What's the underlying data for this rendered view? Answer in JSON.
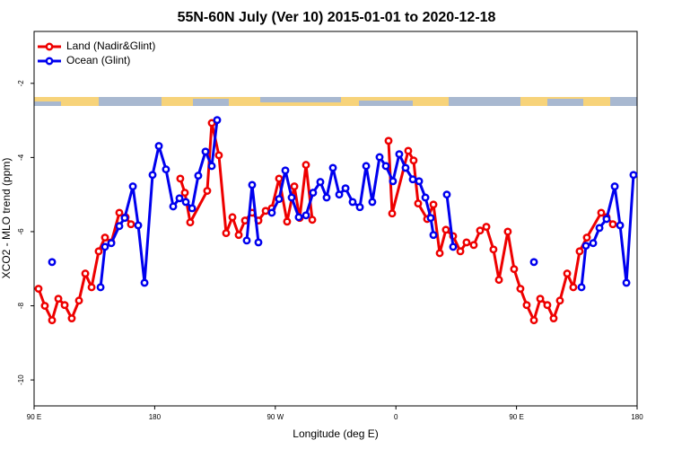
{
  "chart_data": {
    "type": "line",
    "title": "55N-60N July (Ver 10)   2015-01-01 to 2020-12-18",
    "x_label": "Longitude (deg E)",
    "y_label": "XCO2 - MLO trend (ppm)",
    "xlim": [
      90,
      540
    ],
    "xticks": [
      {
        "value": 90,
        "label": "90 E"
      },
      {
        "value": 180,
        "label": "180"
      },
      {
        "value": 270,
        "label": "90 W"
      },
      {
        "value": 360,
        "label": "0"
      },
      {
        "value": 450,
        "label": "90 E"
      },
      {
        "value": 540,
        "label": "180"
      }
    ],
    "ylim": [
      -10.7,
      -0.6
    ],
    "yticks": [
      -2,
      -4,
      -6,
      -8,
      -10
    ],
    "legend": "top-left",
    "series": [
      {
        "name": "Land (Nadir&Glint)",
        "color": "#ee0000",
        "x": [
          93.3,
          98.0,
          103.4,
          108.1,
          112.8,
          118.1,
          123.5,
          128.2,
          132.9,
          138.2,
          142.9,
          147.6,
          153.6,
          158.3,
          162.3,
          null,
          199.1,
          202.5,
          206.5,
          219.2,
          222.6,
          227.9,
          233.3,
          238.0,
          242.7,
          247.4,
          252.7,
          257.4,
          262.8,
          267.4,
          272.8,
          278.8,
          284.2,
          288.2,
          292.9,
          297.6,
          null,
          354.5,
          357.2,
          369.2,
          373.2,
          376.6,
          383.3,
          388.0,
          392.7,
          397.3,
          402.7,
          408.1,
          412.7,
          418.1,
          422.8,
          427.5,
          432.8,
          436.9,
          443.5,
          448.2,
          452.9,
          457.6,
          463.0,
          467.7,
          473.0,
          477.7,
          482.4,
          487.8,
          492.4,
          497.1,
          502.5,
          513.2,
          517.2,
          521.9
        ],
        "values": [
          -7.54,
          -8.0,
          -8.39,
          -7.81,
          -7.98,
          -8.34,
          -7.86,
          -7.13,
          -7.5,
          -6.53,
          -6.16,
          -6.29,
          -5.49,
          -5.61,
          -5.8,
          null,
          -4.57,
          -4.95,
          -5.75,
          -4.9,
          -3.07,
          -3.94,
          -6.04,
          -5.61,
          -6.09,
          -5.7,
          -5.49,
          -5.7,
          -5.44,
          -5.37,
          -4.57,
          -5.73,
          -4.78,
          -5.63,
          -4.2,
          -5.68,
          null,
          -3.55,
          -5.51,
          -3.82,
          -4.08,
          -5.24,
          -5.66,
          -5.27,
          -6.58,
          -5.95,
          -6.12,
          -6.53,
          -6.29,
          -6.36,
          -5.97,
          -5.87,
          -6.48,
          -7.3,
          -6.0,
          -7.01,
          -7.54,
          -7.98,
          -8.39,
          -7.81,
          -7.98,
          -8.34,
          -7.86,
          -7.13,
          -7.5,
          -6.53,
          -6.16,
          -5.49,
          -5.61,
          -5.8
        ]
      },
      {
        "name": "Ocean (Glint)",
        "color": "#0000ee",
        "x": [
          103.4,
          null,
          139.6,
          142.9,
          147.6,
          153.6,
          157.6,
          163.7,
          167.7,
          172.4,
          178.4,
          183.1,
          188.4,
          193.8,
          198.5,
          203.2,
          207.9,
          212.5,
          217.9,
          222.6,
          226.6,
          null,
          248.7,
          252.7,
          257.4,
          null,
          267.4,
          272.8,
          277.5,
          282.2,
          287.5,
          292.9,
          298.2,
          303.6,
          308.3,
          313.0,
          317.7,
          322.4,
          327.7,
          333.1,
          337.8,
          342.4,
          347.8,
          352.5,
          357.8,
          362.5,
          367.2,
          372.6,
          377.3,
          382.0,
          386.0,
          388.0,
          null,
          398.0,
          402.7,
          null,
          463.0,
          null,
          498.5,
          501.8,
          507.2,
          511.9,
          517.2,
          523.3,
          527.3,
          532.0,
          537.3
        ],
        "values": [
          -6.82,
          null,
          -7.5,
          -6.41,
          -6.31,
          -5.85,
          -5.63,
          -4.78,
          -5.83,
          -7.38,
          -4.47,
          -3.69,
          -4.32,
          -5.32,
          -5.1,
          -5.2,
          -5.37,
          -4.49,
          -3.84,
          -4.23,
          -2.99,
          null,
          -6.24,
          -4.74,
          -6.29,
          null,
          -5.49,
          -5.12,
          -4.35,
          -5.08,
          -5.61,
          -5.56,
          -4.95,
          -4.66,
          -5.08,
          -4.28,
          -5.0,
          -4.83,
          -5.2,
          -5.34,
          -4.23,
          -5.2,
          -3.99,
          -4.23,
          -4.64,
          -3.91,
          -4.28,
          -4.59,
          -4.64,
          -5.08,
          -5.63,
          -6.09,
          null,
          -5.0,
          -6.41,
          null,
          -6.82,
          null,
          -7.5,
          -6.38,
          -6.31,
          -5.9,
          -5.66,
          -4.78,
          -5.83,
          -7.38,
          -4.47
        ]
      }
    ]
  }
}
